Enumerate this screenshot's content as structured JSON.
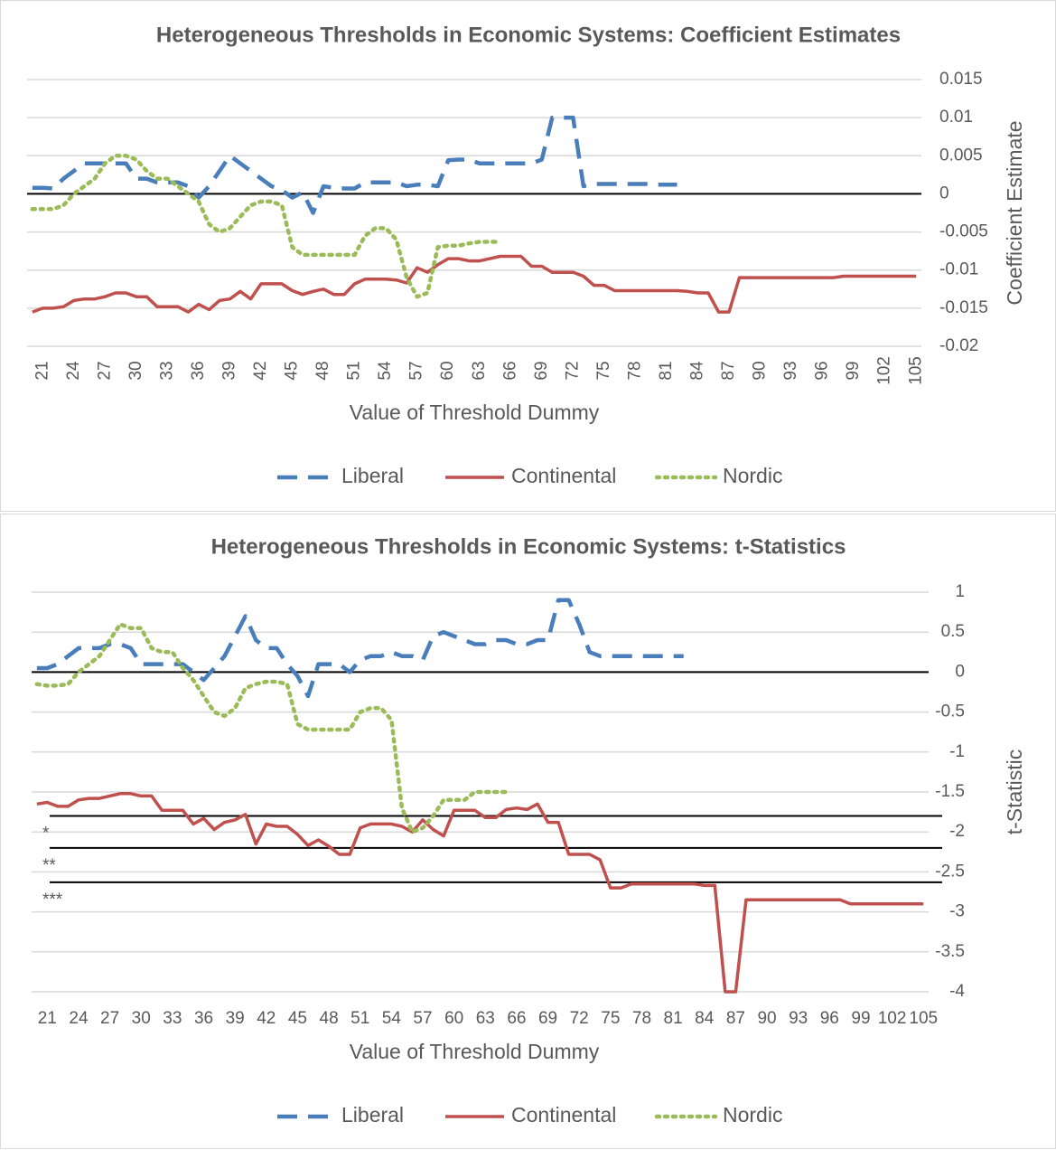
{
  "chart_data": [
    {
      "type": "line",
      "title": "Heterogeneous Thresholds in Economic Systems: Coefficient Estimates",
      "x_label": "Value of Threshold Dummy",
      "y_label": "Coefficient Estimate",
      "x": [
        20,
        21,
        22,
        23,
        24,
        25,
        26,
        27,
        28,
        29,
        30,
        31,
        32,
        33,
        34,
        35,
        36,
        37,
        38,
        39,
        40,
        41,
        42,
        43,
        44,
        45,
        46,
        47,
        48,
        49,
        50,
        51,
        52,
        53,
        54,
        55,
        56,
        57,
        58,
        59,
        60,
        61,
        62,
        63,
        64,
        65,
        66,
        67,
        68,
        69,
        70,
        71,
        72,
        73,
        74,
        75,
        76,
        77,
        78,
        79,
        80,
        81,
        82,
        83,
        84,
        85,
        86,
        87,
        88,
        89,
        90,
        91,
        92,
        93,
        94,
        95,
        96,
        97,
        98,
        99,
        100,
        101,
        102,
        103,
        104,
        105
      ],
      "xlim": [
        19.5,
        105.5
      ],
      "xticks": [
        21,
        24,
        27,
        30,
        33,
        36,
        39,
        42,
        45,
        48,
        51,
        54,
        57,
        60,
        63,
        66,
        69,
        72,
        75,
        78,
        81,
        84,
        87,
        90,
        93,
        96,
        99,
        102,
        105
      ],
      "ylim": [
        -0.02,
        0.015
      ],
      "yticks": [
        0.015,
        0.01,
        0.005,
        0,
        -0.005,
        -0.01,
        -0.015,
        -0.02
      ],
      "grid": true,
      "legend": "bottom",
      "series": [
        {
          "name": "Liberal",
          "color": "#4a7ebb",
          "line_style": "dash",
          "values": [
            0.0008,
            0.0008,
            0.0007,
            0.002,
            0.003,
            0.004,
            0.004,
            0.004,
            0.004,
            0.004,
            0.002,
            0.002,
            0.0015,
            0.0015,
            0.0015,
            0.001,
            -0.0005,
            0.001,
            0.003,
            0.005,
            0.004,
            0.003,
            0.002,
            0.001,
            0.0005,
            -0.0005,
            0.0002,
            -0.0025,
            0.001,
            0.0008,
            0.0007,
            0.0007,
            0.0015,
            0.0015,
            0.0015,
            0.0015,
            0.001,
            0.0012,
            0.0012,
            0.001,
            0.0044,
            0.0045,
            0.0045,
            0.004,
            0.004,
            0.004,
            0.004,
            0.004,
            0.004,
            0.0045,
            0.01,
            0.01,
            0.01,
            0.001,
            0.0013,
            0.0013,
            0.0013,
            0.0013,
            0.0013,
            0.0013,
            0.0012,
            0.0012,
            0.0012,
            null,
            null,
            null,
            null,
            null,
            null,
            null,
            null,
            null,
            null,
            null,
            null,
            null,
            null,
            null,
            null,
            null,
            null,
            null,
            null,
            null,
            null,
            null
          ]
        },
        {
          "name": "Continental",
          "color": "#c0504d",
          "line_style": "solid",
          "values": [
            -0.0155,
            -0.015,
            -0.015,
            -0.0148,
            -0.014,
            -0.0138,
            -0.0138,
            -0.0135,
            -0.013,
            -0.013,
            -0.0135,
            -0.0135,
            -0.0148,
            -0.0148,
            -0.0148,
            -0.0155,
            -0.0145,
            -0.0152,
            -0.014,
            -0.0138,
            -0.0128,
            -0.0138,
            -0.0118,
            -0.0118,
            -0.0118,
            -0.0127,
            -0.0132,
            -0.0128,
            -0.0125,
            -0.0132,
            -0.0132,
            -0.0118,
            -0.0112,
            -0.0112,
            -0.0112,
            -0.0113,
            -0.0117,
            -0.0097,
            -0.0103,
            -0.0093,
            -0.0085,
            -0.0085,
            -0.0088,
            -0.0088,
            -0.0085,
            -0.0082,
            -0.0082,
            -0.0082,
            -0.0095,
            -0.0095,
            -0.0103,
            -0.0103,
            -0.0103,
            -0.0108,
            -0.012,
            -0.012,
            -0.0127,
            -0.0127,
            -0.0127,
            -0.0127,
            -0.0127,
            -0.0127,
            -0.0127,
            -0.0128,
            -0.013,
            -0.013,
            -0.0155,
            -0.0155,
            -0.011,
            -0.011,
            -0.011,
            -0.011,
            -0.011,
            -0.011,
            -0.011,
            -0.011,
            -0.011,
            -0.011,
            -0.0108,
            -0.0108,
            -0.0108,
            -0.0108,
            -0.0108,
            -0.0108,
            -0.0108,
            -0.0108
          ]
        },
        {
          "name": "Nordic",
          "color": "#9bbb59",
          "line_style": "dot",
          "values": [
            -0.002,
            -0.002,
            -0.002,
            -0.0015,
            0,
            0.001,
            0.002,
            0.004,
            0.005,
            0.005,
            0.0045,
            0.003,
            0.002,
            0.002,
            0.001,
            0,
            -0.001,
            -0.004,
            -0.005,
            -0.0045,
            -0.003,
            -0.0015,
            -0.001,
            -0.001,
            -0.0015,
            -0.007,
            -0.008,
            -0.008,
            -0.008,
            -0.008,
            -0.008,
            -0.008,
            -0.0055,
            -0.0045,
            -0.0045,
            -0.006,
            -0.011,
            -0.0135,
            -0.013,
            -0.007,
            -0.0068,
            -0.0068,
            -0.0065,
            -0.0063,
            -0.0063,
            -0.0063,
            null,
            null,
            null,
            null,
            null,
            null,
            null,
            null,
            null,
            null,
            null,
            null,
            null,
            null,
            null,
            null,
            null,
            null,
            null,
            null,
            null,
            null,
            null,
            null,
            null,
            null,
            null,
            null,
            null,
            null,
            null,
            null,
            null,
            null,
            null,
            null,
            null,
            null,
            null,
            null
          ]
        }
      ]
    },
    {
      "type": "line",
      "title": "Heterogeneous Thresholds in Economic Systems: t-Statistics",
      "x_label": "Value of Threshold Dummy",
      "y_label": "t-Statistic",
      "x": [
        20,
        21,
        22,
        23,
        24,
        25,
        26,
        27,
        28,
        29,
        30,
        31,
        32,
        33,
        34,
        35,
        36,
        37,
        38,
        39,
        40,
        41,
        42,
        43,
        44,
        45,
        46,
        47,
        48,
        49,
        50,
        51,
        52,
        53,
        54,
        55,
        56,
        57,
        58,
        59,
        60,
        61,
        62,
        63,
        64,
        65,
        66,
        67,
        68,
        69,
        70,
        71,
        72,
        73,
        74,
        75,
        76,
        77,
        78,
        79,
        80,
        81,
        82,
        83,
        84,
        85,
        86,
        87,
        88,
        89,
        90,
        91,
        92,
        93,
        94,
        95,
        96,
        97,
        98,
        99,
        100,
        101,
        102,
        103,
        104,
        105
      ],
      "xlim": [
        19.5,
        105.5
      ],
      "xticks": [
        21,
        24,
        27,
        30,
        33,
        36,
        39,
        42,
        45,
        48,
        51,
        54,
        57,
        60,
        63,
        66,
        69,
        72,
        75,
        78,
        81,
        84,
        87,
        90,
        93,
        96,
        99,
        102,
        105
      ],
      "ylim": [
        -4,
        1
      ],
      "yticks": [
        1,
        0.5,
        0,
        -0.5,
        -1,
        -1.5,
        -2,
        -2.5,
        -3,
        -3.5,
        -4
      ],
      "grid": true,
      "legend": "bottom",
      "reference_lines": [
        {
          "value": -1.8,
          "label": "*"
        },
        {
          "value": -2.2,
          "label": "**"
        },
        {
          "value": -2.63,
          "label": "***"
        }
      ],
      "series": [
        {
          "name": "Liberal",
          "color": "#4a7ebb",
          "line_style": "dash",
          "values": [
            0.05,
            0.05,
            0.1,
            0.2,
            0.3,
            0.3,
            0.3,
            0.35,
            0.35,
            0.3,
            0.1,
            0.1,
            0.1,
            0.1,
            0.1,
            0,
            -0.1,
            0.05,
            0.2,
            0.45,
            0.7,
            0.4,
            0.3,
            0.3,
            0.1,
            -0.05,
            -0.3,
            0.1,
            0.1,
            0.1,
            0,
            0.15,
            0.2,
            0.2,
            0.25,
            0.2,
            0.2,
            0.15,
            0.45,
            0.5,
            0.45,
            0.4,
            0.35,
            0.35,
            0.4,
            0.4,
            0.35,
            0.35,
            0.4,
            0.4,
            0.9,
            0.9,
            0.6,
            0.25,
            0.2,
            0.2,
            0.2,
            0.2,
            0.2,
            0.2,
            0.2,
            0.2,
            0.2,
            null,
            null,
            null,
            null,
            null,
            null,
            null,
            null,
            null,
            null,
            null,
            null,
            null,
            null,
            null,
            null,
            null,
            null,
            null,
            null,
            null,
            null,
            null
          ]
        },
        {
          "name": "Continental",
          "color": "#c0504d",
          "line_style": "solid",
          "values": [
            -1.65,
            -1.63,
            -1.68,
            -1.68,
            -1.6,
            -1.58,
            -1.58,
            -1.55,
            -1.52,
            -1.52,
            -1.55,
            -1.55,
            -1.73,
            -1.73,
            -1.73,
            -1.9,
            -1.83,
            -1.97,
            -1.88,
            -1.85,
            -1.78,
            -2.15,
            -1.9,
            -1.93,
            -1.93,
            -2.03,
            -2.17,
            -2.1,
            -2.18,
            -2.28,
            -2.28,
            -1.95,
            -1.9,
            -1.9,
            -1.9,
            -1.93,
            -2,
            -1.85,
            -1.97,
            -2.05,
            -1.73,
            -1.73,
            -1.73,
            -1.82,
            -1.82,
            -1.72,
            -1.7,
            -1.72,
            -1.65,
            -1.88,
            -1.88,
            -2.28,
            -2.28,
            -2.28,
            -2.35,
            -2.7,
            -2.7,
            -2.65,
            -2.65,
            -2.65,
            -2.65,
            -2.65,
            -2.65,
            -2.65,
            -2.67,
            -2.67,
            -4,
            -4,
            -2.85,
            -2.85,
            -2.85,
            -2.85,
            -2.85,
            -2.85,
            -2.85,
            -2.85,
            -2.85,
            -2.85,
            -2.9,
            -2.9,
            -2.9,
            -2.9,
            -2.9,
            -2.9,
            -2.9,
            -2.9
          ]
        },
        {
          "name": "Nordic",
          "color": "#9bbb59",
          "line_style": "dot",
          "values": [
            -0.15,
            -0.17,
            -0.17,
            -0.15,
            0,
            0.1,
            0.2,
            0.4,
            0.6,
            0.55,
            0.55,
            0.3,
            0.25,
            0.25,
            0.05,
            -0.1,
            -0.3,
            -0.5,
            -0.55,
            -0.45,
            -0.2,
            -0.15,
            -0.12,
            -0.12,
            -0.15,
            -0.65,
            -0.72,
            -0.72,
            -0.72,
            -0.72,
            -0.72,
            -0.5,
            -0.45,
            -0.45,
            -0.6,
            -1.7,
            -2,
            -1.95,
            -1.8,
            -1.6,
            -1.6,
            -1.6,
            -1.5,
            -1.5,
            -1.5,
            -1.5,
            null,
            null,
            null,
            null,
            null,
            null,
            null,
            null,
            null,
            null,
            null,
            null,
            null,
            null,
            null,
            null,
            null,
            null,
            null,
            null,
            null,
            null,
            null,
            null,
            null,
            null,
            null,
            null,
            null,
            null,
            null,
            null,
            null,
            null,
            null,
            null,
            null,
            null,
            null,
            null
          ]
        }
      ]
    }
  ]
}
